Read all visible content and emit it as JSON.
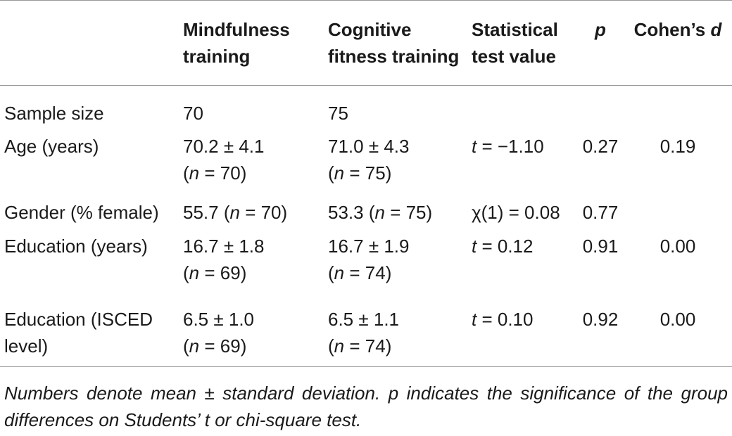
{
  "table": {
    "headers": {
      "col0": "",
      "col1": "Mindfulness training",
      "col2": "Cognitive fitness training",
      "col3": "Statistical test value",
      "col4": "p",
      "col5_prefix": "Cohen’s ",
      "col5_italic": "d"
    },
    "rows": [
      {
        "label": "Sample size",
        "mindfulness": {
          "main": "70",
          "n_prefix": "",
          "n_italic": "",
          "n_suffix": ""
        },
        "cognitive": {
          "main": "75",
          "n_prefix": "",
          "n_italic": "",
          "n_suffix": ""
        },
        "test": {
          "italic": "",
          "rest": ""
        },
        "p": "",
        "d": ""
      },
      {
        "label": "Age (years)",
        "mindfulness": {
          "main": "70.2 ± 4.1",
          "n_prefix": "(",
          "n_italic": "n",
          "n_suffix": " = 70)"
        },
        "cognitive": {
          "main": "71.0 ± 4.3",
          "n_prefix": "(",
          "n_italic": "n",
          "n_suffix": " = 75)"
        },
        "test": {
          "italic": "t",
          "rest": " = −1.10"
        },
        "p": "0.27",
        "d": "0.19"
      },
      {
        "label": "Gender (% female)",
        "mindfulness": {
          "main": "55.7 (",
          "n_italic": "n",
          "n_suffix": " = 70)"
        },
        "cognitive": {
          "main": "53.3 (",
          "n_italic": "n",
          "n_suffix": " = 75)"
        },
        "test": {
          "italic": "",
          "rest": "χ(1) = 0.08"
        },
        "p": "0.77",
        "d": ""
      },
      {
        "label": "Education (years)",
        "mindfulness": {
          "main": "16.7 ± 1.8",
          "n_prefix": "(",
          "n_italic": "n",
          "n_suffix": " = 69)"
        },
        "cognitive": {
          "main": "16.7 ± 1.9",
          "n_prefix": "(",
          "n_italic": "n",
          "n_suffix": " = 74)"
        },
        "test": {
          "italic": "t",
          "rest": " = 0.12"
        },
        "p": "0.91",
        "d": "0.00"
      },
      {
        "label": "Education (ISCED level)",
        "mindfulness": {
          "main": "6.5 ± 1.0",
          "n_prefix": "(",
          "n_italic": "n",
          "n_suffix": " = 69)"
        },
        "cognitive": {
          "main": "6.5 ± 1.1",
          "n_prefix": "(",
          "n_italic": "n",
          "n_suffix": " = 74)"
        },
        "test": {
          "italic": "t",
          "rest": " = 0.10"
        },
        "p": "0.92",
        "d": "0.00"
      }
    ]
  },
  "footnote": "Numbers denote mean ± standard deviation. p indicates the significance of the group differences on Students’ t or chi-square test.",
  "colors": {
    "text": "#1a1a1a",
    "rule": "#9a9a9a",
    "background": "#ffffff"
  }
}
